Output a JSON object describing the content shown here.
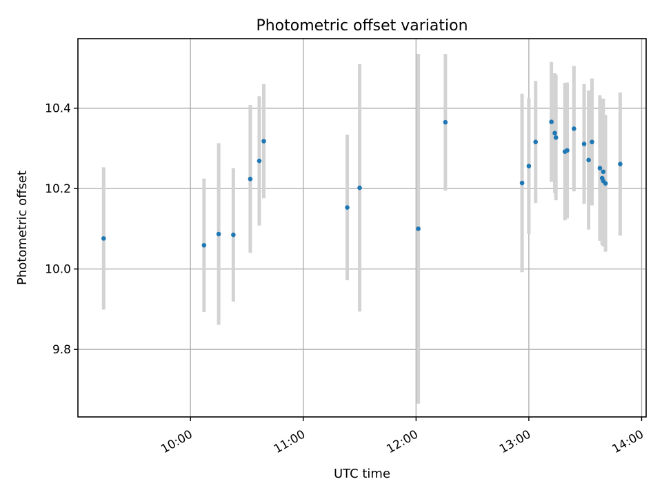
{
  "chart_data": {
    "type": "scatter",
    "title": "Photometric offset variation",
    "xlabel": "UTC time",
    "ylabel": "Photometric offset",
    "x_unit": "hours",
    "xlim": [
      9.002,
      14.04
    ],
    "ylim": [
      9.632,
      10.573
    ],
    "x_ticks": [
      10,
      11,
      12,
      13,
      14
    ],
    "x_tick_labels": [
      "10:00",
      "11:00",
      "12:00",
      "13:00",
      "14:00"
    ],
    "y_ticks": [
      9.8,
      10.0,
      10.2,
      10.4
    ],
    "y_tick_labels": [
      "9.8",
      "10.0",
      "10.2",
      "10.4"
    ],
    "grid": true,
    "marker_color": "#1f77b4",
    "errorbar_color": "#d3d3d3",
    "points": [
      {
        "x": 9.23,
        "y": 10.076,
        "err": 0.177
      },
      {
        "x": 10.12,
        "y": 10.059,
        "err": 0.166
      },
      {
        "x": 10.25,
        "y": 10.087,
        "err": 0.226
      },
      {
        "x": 10.38,
        "y": 10.085,
        "err": 0.166
      },
      {
        "x": 10.53,
        "y": 10.224,
        "err": 0.184
      },
      {
        "x": 10.61,
        "y": 10.269,
        "err": 0.161
      },
      {
        "x": 10.65,
        "y": 10.318,
        "err": 0.142
      },
      {
        "x": 11.39,
        "y": 10.153,
        "err": 0.181
      },
      {
        "x": 11.5,
        "y": 10.202,
        "err": 0.308
      },
      {
        "x": 12.02,
        "y": 10.1,
        "err": 0.435
      },
      {
        "x": 12.26,
        "y": 10.365,
        "err": 0.17
      },
      {
        "x": 12.94,
        "y": 10.214,
        "err": 0.222
      },
      {
        "x": 13.0,
        "y": 10.256,
        "err": 0.169
      },
      {
        "x": 13.06,
        "y": 10.316,
        "err": 0.152
      },
      {
        "x": 13.2,
        "y": 10.366,
        "err": 0.149
      },
      {
        "x": 13.23,
        "y": 10.338,
        "err": 0.149
      },
      {
        "x": 13.24,
        "y": 10.327,
        "err": 0.156
      },
      {
        "x": 13.32,
        "y": 10.292,
        "err": 0.171
      },
      {
        "x": 13.34,
        "y": 10.295,
        "err": 0.169
      },
      {
        "x": 13.4,
        "y": 10.349,
        "err": 0.156
      },
      {
        "x": 13.49,
        "y": 10.311,
        "err": 0.149
      },
      {
        "x": 13.53,
        "y": 10.271,
        "err": 0.173
      },
      {
        "x": 13.56,
        "y": 10.316,
        "err": 0.158
      },
      {
        "x": 13.63,
        "y": 10.251,
        "err": 0.181
      },
      {
        "x": 13.65,
        "y": 10.226,
        "err": 0.166
      },
      {
        "x": 13.66,
        "y": 10.219,
        "err": 0.163
      },
      {
        "x": 13.66,
        "y": 10.242,
        "err": 0.182
      },
      {
        "x": 13.68,
        "y": 10.213,
        "err": 0.17
      },
      {
        "x": 13.81,
        "y": 10.261,
        "err": 0.178
      }
    ]
  }
}
